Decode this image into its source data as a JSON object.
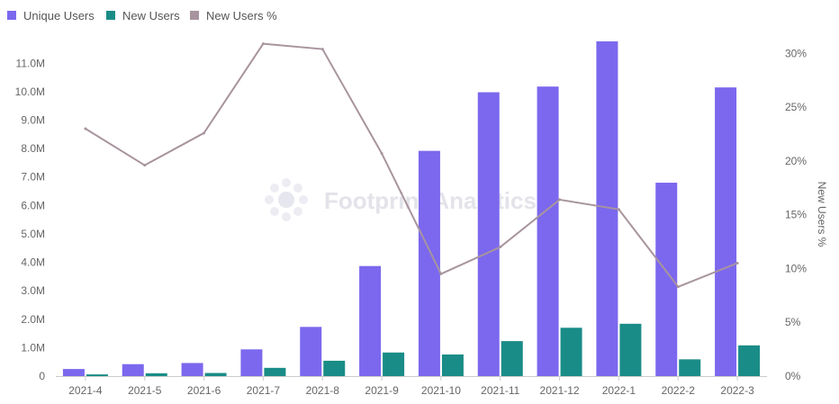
{
  "colors": {
    "unique_users": "#7b68ee",
    "new_users": "#1a8c87",
    "new_users_pct": "#a8949e",
    "grid": "#ececec",
    "axis": "#cccccc"
  },
  "watermark": {
    "text": "Footprint Analytics"
  },
  "chart_data": {
    "type": "bar",
    "categories": [
      "2021-4",
      "2021-5",
      "2021-6",
      "2021-7",
      "2021-8",
      "2021-9",
      "2021-10",
      "2021-11",
      "2021-12",
      "2022-1",
      "2022-2",
      "2022-3"
    ],
    "series": [
      {
        "name": "Unique Users",
        "type": "bar",
        "axis": "left",
        "values": [
          0.25,
          0.42,
          0.46,
          0.94,
          1.73,
          3.87,
          7.92,
          9.98,
          10.18,
          11.77,
          6.8,
          10.15
        ]
      },
      {
        "name": "New Users",
        "type": "bar",
        "axis": "left",
        "values": [
          0.06,
          0.1,
          0.11,
          0.29,
          0.54,
          0.83,
          0.76,
          1.23,
          1.7,
          1.84,
          0.59,
          1.08
        ]
      },
      {
        "name": "New Users %",
        "type": "line",
        "axis": "right",
        "values": [
          23.0,
          19.6,
          22.6,
          30.9,
          30.4,
          20.7,
          9.5,
          12.0,
          16.4,
          15.5,
          8.3,
          10.5
        ]
      }
    ],
    "left_axis": {
      "ylim": [
        0,
        11.8
      ],
      "ticks": [
        0,
        1,
        2,
        3,
        4,
        5,
        6,
        7,
        8,
        9,
        10,
        11
      ],
      "tick_labels": [
        "0",
        "1.0M",
        "2.0M",
        "3.0M",
        "4.0M",
        "5.0M",
        "6.0M",
        "7.0M",
        "8.0M",
        "9.0M",
        "10.0M",
        "11.0M"
      ]
    },
    "right_axis": {
      "label": "New Users %",
      "ylim": [
        0,
        31.2
      ],
      "ticks": [
        0,
        5,
        10,
        15,
        20,
        25,
        30
      ],
      "tick_labels": [
        "0%",
        "5%",
        "10%",
        "15%",
        "20%",
        "25%",
        "30%"
      ]
    },
    "legend": {
      "placement": "top-left",
      "entries": [
        "Unique Users",
        "New Users",
        "New Users %"
      ]
    },
    "grid": false
  }
}
